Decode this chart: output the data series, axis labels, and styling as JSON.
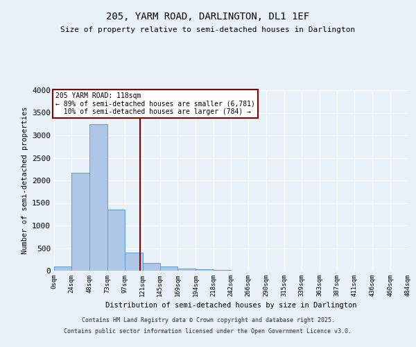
{
  "title": "205, YARM ROAD, DARLINGTON, DL1 1EF",
  "subtitle": "Size of property relative to semi-detached houses in Darlington",
  "xlabel": "Distribution of semi-detached houses by size in Darlington",
  "ylabel": "Number of semi-detached properties",
  "bar_heights": [
    100,
    2175,
    3250,
    1350,
    400,
    175,
    100,
    50,
    30,
    10,
    5,
    3,
    2,
    1,
    1,
    0,
    0,
    0,
    0,
    0
  ],
  "bin_edges": [
    0,
    24,
    48,
    73,
    97,
    121,
    145,
    169,
    194,
    218,
    242,
    266,
    290,
    315,
    339,
    363,
    387,
    411,
    436,
    460,
    484
  ],
  "xtick_labels": [
    "0sqm",
    "24sqm",
    "48sqm",
    "73sqm",
    "97sqm",
    "121sqm",
    "145sqm",
    "169sqm",
    "194sqm",
    "218sqm",
    "242sqm",
    "266sqm",
    "290sqm",
    "315sqm",
    "339sqm",
    "363sqm",
    "387sqm",
    "411sqm",
    "436sqm",
    "460sqm",
    "484sqm"
  ],
  "bar_color": "#aec6e8",
  "bar_edge_color": "#5b9bd5",
  "vline_x": 118,
  "vline_color": "#8b0000",
  "annotation_text": "205 YARM ROAD: 118sqm\n← 89% of semi-detached houses are smaller (6,781)\n  10% of semi-detached houses are larger (784) →",
  "annotation_box_color": "#8b0000",
  "ylim": [
    0,
    4000
  ],
  "yticks": [
    0,
    500,
    1000,
    1500,
    2000,
    2500,
    3000,
    3500,
    4000
  ],
  "background_color": "#e8f0f8",
  "plot_bg_color": "#e8f0f8",
  "grid_color": "#ffffff",
  "footer_line1": "Contains HM Land Registry data © Crown copyright and database right 2025.",
  "footer_line2": "Contains public sector information licensed under the Open Government Licence v3.0."
}
